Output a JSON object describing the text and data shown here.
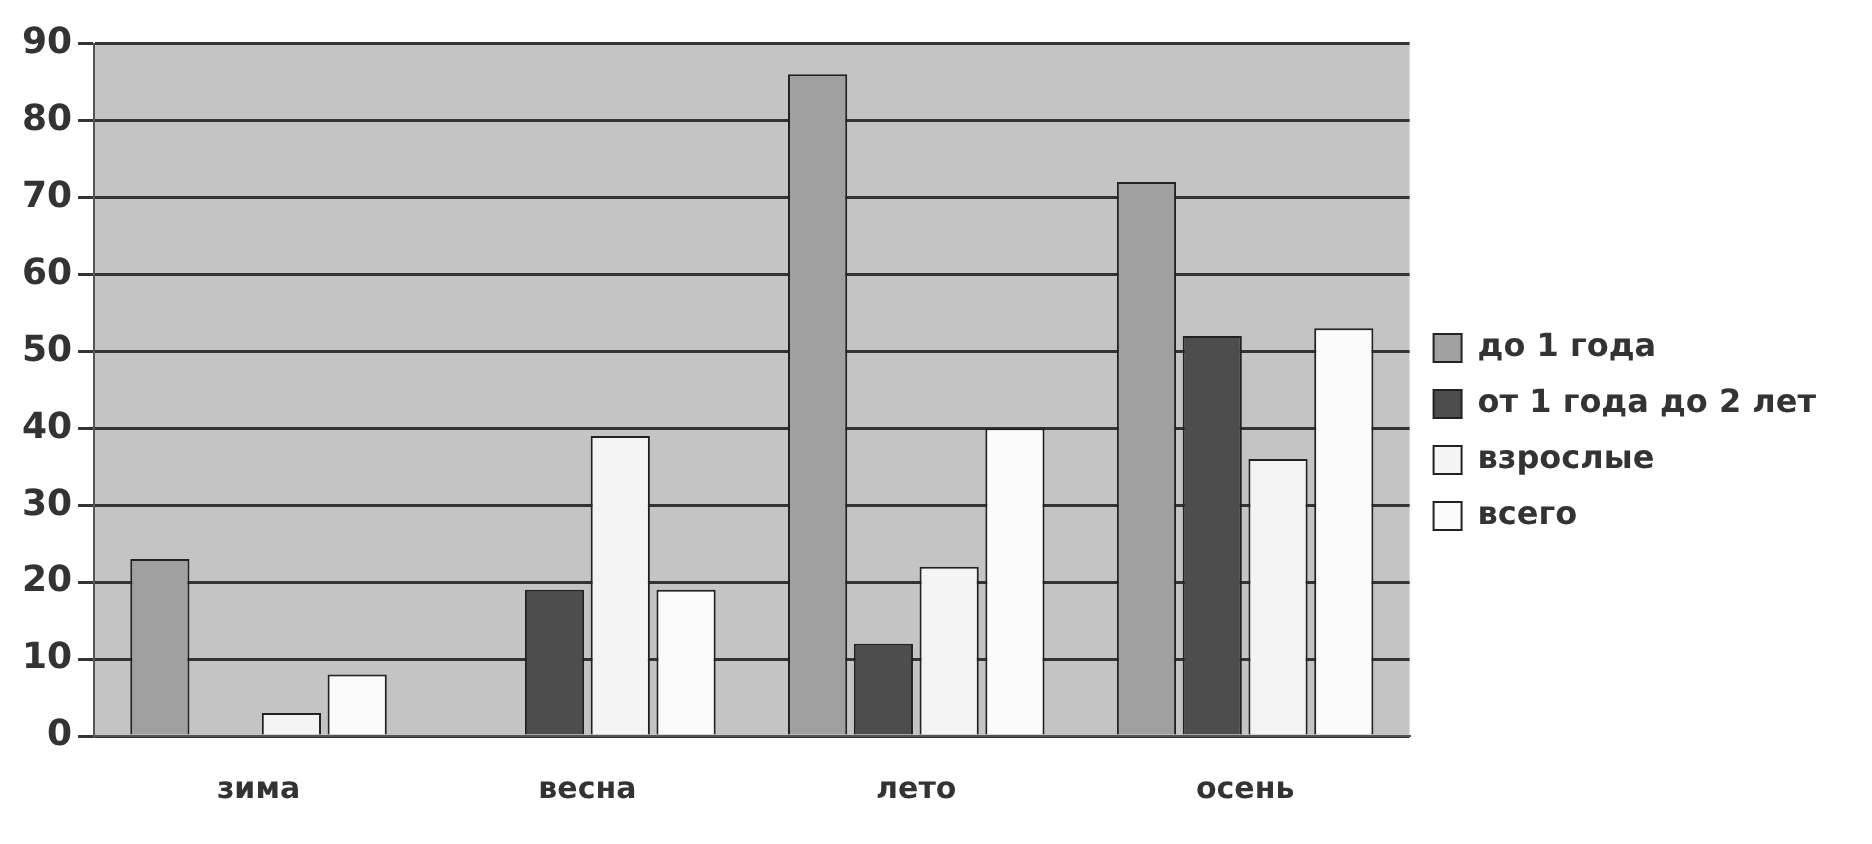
{
  "chart_data": {
    "type": "bar",
    "categories": [
      "зима",
      "весна",
      "лето",
      "осень"
    ],
    "series": [
      {
        "name": "до 1 года",
        "color": "#a0a0a0",
        "values": [
          23,
          0,
          86,
          72
        ]
      },
      {
        "name": "от 1 года до 2 лет",
        "color": "#4d4d4d",
        "values": [
          0,
          19,
          12,
          52
        ]
      },
      {
        "name": "взрослые",
        "color": "#f4f4f4",
        "values": [
          3,
          39,
          22,
          36
        ]
      },
      {
        "name": "всего",
        "color": "#fbfbfb",
        "values": [
          8,
          19,
          40,
          53
        ]
      }
    ],
    "ylim": [
      0,
      90
    ],
    "yticks": [
      0,
      10,
      20,
      30,
      40,
      50,
      60,
      70,
      80,
      90
    ],
    "grid": "y",
    "legend": "right"
  }
}
